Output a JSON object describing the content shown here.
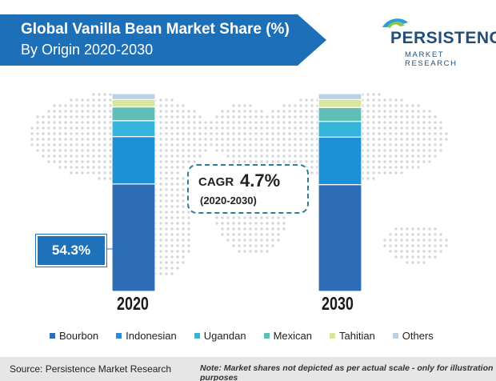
{
  "header": {
    "title_line1": "Global Vanilla Bean Market Share (%)",
    "title_line2": "By Origin 2020-2030"
  },
  "logo": {
    "line1": "PERSISTENCE",
    "line2": "MARKET RESEARCH"
  },
  "cagr": {
    "label": "CAGR",
    "value": "4.7%",
    "period": "(2020-2030)"
  },
  "callout": {
    "text": "54.3%"
  },
  "footer": {
    "source": "Source: Persistence Market Research",
    "note": "Note: Market shares not depicted as per actual scale - only for illustration purposes"
  },
  "colors": {
    "brand_blue": "#1d6fb8",
    "bourbon": "#2d6db5",
    "indonesian": "#1e90d8",
    "ugandan": "#34b6dc",
    "mexican": "#5fbfb6",
    "tahitian": "#d8e89a",
    "others": "#b9d1e0"
  },
  "chart_data": {
    "type": "bar",
    "stacked": true,
    "categories": [
      "2020",
      "2030"
    ],
    "series": [
      {
        "name": "Bourbon",
        "color": "#2d6db5",
        "values": [
          54.3,
          54.0
        ]
      },
      {
        "name": "Indonesian",
        "color": "#1e90d8",
        "values": [
          24.0,
          24.0
        ]
      },
      {
        "name": "Ugandan",
        "color": "#34b6dc",
        "values": [
          8.0,
          8.0
        ]
      },
      {
        "name": "Mexican",
        "color": "#5fbfb6",
        "values": [
          7.0,
          7.0
        ]
      },
      {
        "name": "Tahitian",
        "color": "#d8e89a",
        "values": [
          3.7,
          4.0
        ]
      },
      {
        "name": "Others",
        "color": "#b9d1e0",
        "values": [
          3.0,
          3.0
        ]
      }
    ],
    "ylim": [
      0,
      100
    ],
    "legend_position": "bottom",
    "annotations": [
      "54.3%"
    ],
    "grid": false
  }
}
